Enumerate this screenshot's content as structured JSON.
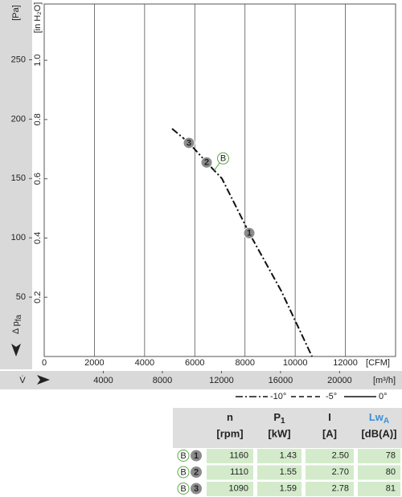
{
  "chart_data": {
    "type": "line",
    "y_label": "Δ p",
    "y_label_sub": "fa",
    "y_unit": "[Pa]",
    "y2_unit": "[in H₂O]",
    "x_unit": "[CFM]",
    "x2_label": "V̇",
    "x2_unit": "[m³/h]",
    "xlim": [
      0,
      14000
    ],
    "xticks": [
      0,
      2000,
      4000,
      6000,
      8000,
      10000,
      12000
    ],
    "x2lim": [
      0,
      23786
    ],
    "x2ticks": [
      4000,
      8000,
      12000,
      16000,
      20000
    ],
    "ylim": [
      0,
      297
    ],
    "yticks": [
      50,
      100,
      150,
      200,
      250
    ],
    "y2lim": [
      0,
      1.19
    ],
    "y2ticks": [
      0.2,
      0.4,
      0.6,
      {
        "value": 0.8,
        "label": "0.8"
      },
      {
        "value": 1.0,
        "label": "1.0"
      }
    ],
    "grid": "x",
    "series": [
      {
        "name": "B",
        "color": "#111111",
        "style": "dash-dot",
        "x": [
          5094,
          5767,
          6472,
          7080,
          8170,
          9450,
          10670
        ],
        "values": [
          192,
          180,
          163.5,
          150,
          104,
          55,
          0
        ]
      }
    ],
    "points": [
      {
        "label": "1",
        "x": 8170,
        "y": 104
      },
      {
        "label": "2",
        "x": 6472,
        "y": 163.5
      },
      {
        "label": "3",
        "x": 5767,
        "y": 180
      }
    ],
    "legend": [
      {
        "name": "-10°",
        "style": "dash-dot"
      },
      {
        "name": "-5°",
        "style": "dashed"
      },
      {
        "name": "0°",
        "style": "solid"
      }
    ]
  },
  "table": {
    "columns": [
      {
        "name": "n",
        "unit": "[rpm]"
      },
      {
        "name": "P",
        "sub": "1",
        "unit": "[kW]"
      },
      {
        "name": "I",
        "unit": "[A]"
      },
      {
        "name": "Lw",
        "sub": "A",
        "unit": "[dB(A)]"
      }
    ],
    "rows": [
      {
        "curve": "B",
        "point": "1",
        "cells": [
          "1160",
          "1.43",
          "2.50",
          "78"
        ]
      },
      {
        "curve": "B",
        "point": "2",
        "cells": [
          "1110",
          "1.55",
          "2.70",
          "80"
        ]
      },
      {
        "curve": "B",
        "point": "3",
        "cells": [
          "1090",
          "1.59",
          "2.78",
          "81"
        ]
      }
    ]
  }
}
